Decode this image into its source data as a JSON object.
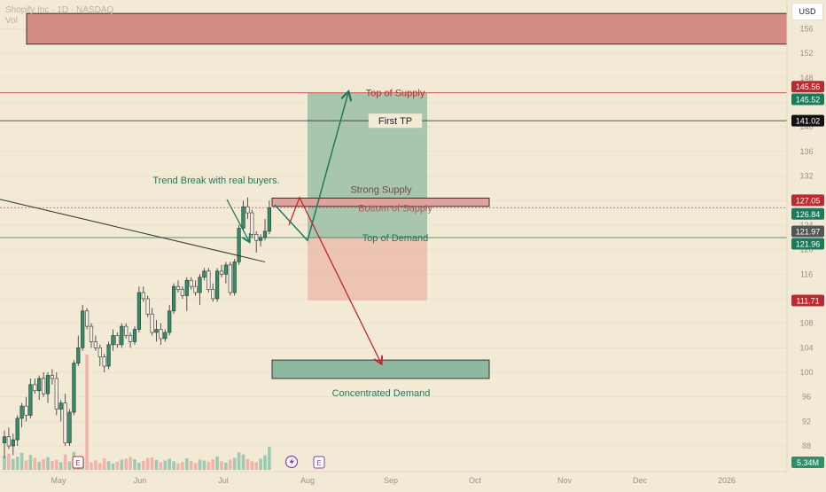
{
  "header": {
    "symbol": "Shopify Inc · 1D · NASDAQ",
    "volume_label": "Vol",
    "currency": "USD"
  },
  "colors": {
    "background": "#f3ead5",
    "up": "#2f8f6b",
    "down": "#ee8a84",
    "supply_zone": "#d48b85",
    "demand_zone": "#8fb8a0",
    "short_arrow": "#c0282f",
    "long_arrow": "#1b7a5c"
  },
  "chart_data": {
    "type": "candlestick",
    "title": "",
    "x_ticks": [
      "May",
      "Jun",
      "Jul",
      "Aug",
      "Sep",
      "Oct",
      "Nov",
      "Dec",
      "2026"
    ],
    "y_ticks": [
      88,
      92,
      96,
      100,
      104,
      108,
      112,
      116,
      120,
      124,
      128,
      132,
      136,
      140,
      144,
      148,
      152,
      156
    ],
    "ylim": [
      85,
      158.5
    ],
    "price_labels": [
      {
        "value": "145.56",
        "color": "#c0282f"
      },
      {
        "value": "145.52",
        "color": "#1b7a5c"
      },
      {
        "value": "141.02",
        "color": "#111111"
      },
      {
        "value": "127.05",
        "color": "#c0282f"
      },
      {
        "value": "126.84",
        "color": "#1b7a5c"
      },
      {
        "value": "121.97",
        "color": "#555555"
      },
      {
        "value": "121.96",
        "color": "#1b7a5c"
      },
      {
        "value": "111.71",
        "color": "#c0282f"
      }
    ],
    "volume_label": "5.34M",
    "candles": [
      [
        88.5,
        90.5,
        86,
        89.5
      ],
      [
        89.5,
        91,
        87.5,
        88
      ],
      [
        88,
        90,
        86.5,
        89
      ],
      [
        89,
        93,
        88,
        92.5
      ],
      [
        92.5,
        95,
        91,
        94.5
      ],
      [
        94.5,
        96,
        92,
        93
      ],
      [
        93,
        99,
        92.5,
        98
      ],
      [
        98,
        99,
        96.5,
        97
      ],
      [
        97,
        99.5,
        95.5,
        99
      ],
      [
        99,
        100,
        96,
        96.5
      ],
      [
        96.5,
        100,
        95,
        99.5
      ],
      [
        99.5,
        100.5,
        98,
        99
      ],
      [
        99,
        100,
        93,
        94
      ],
      [
        94,
        95.5,
        92,
        95
      ],
      [
        95,
        96.5,
        88,
        88.5
      ],
      [
        88.5,
        94,
        88,
        93.5
      ],
      [
        93.5,
        102,
        93,
        101.5
      ],
      [
        101.5,
        106,
        101,
        104
      ],
      [
        104,
        111,
        103.5,
        110
      ],
      [
        110,
        110.5,
        107,
        107.5
      ],
      [
        107.5,
        108,
        104,
        105
      ],
      [
        105,
        106,
        103.5,
        104
      ],
      [
        104,
        104.5,
        101,
        102.5
      ],
      [
        102.5,
        103,
        100,
        101
      ],
      [
        101,
        105,
        100.5,
        104.5
      ],
      [
        104.5,
        107,
        103.5,
        106
      ],
      [
        106,
        106.5,
        104,
        104.5
      ],
      [
        104.5,
        108,
        104,
        107.5
      ],
      [
        107.5,
        108,
        105.5,
        106
      ],
      [
        106,
        106.5,
        104,
        105
      ],
      [
        105,
        107.5,
        104.5,
        107
      ],
      [
        107,
        114,
        106.5,
        113
      ],
      [
        113,
        114,
        111.5,
        112
      ],
      [
        112,
        112.5,
        109,
        109.5
      ],
      [
        109.5,
        110.5,
        106,
        106.5
      ],
      [
        106.5,
        108.5,
        105,
        107
      ],
      [
        107,
        108,
        104.5,
        105.5
      ],
      [
        105.5,
        107,
        105,
        106.5
      ],
      [
        106.5,
        111,
        106,
        110
      ],
      [
        110,
        114.5,
        109.5,
        114
      ],
      [
        114,
        115,
        113,
        113.5
      ],
      [
        113.5,
        114,
        112,
        112.5
      ],
      [
        112.5,
        115.5,
        110,
        115
      ],
      [
        115,
        115.5,
        113.5,
        114
      ],
      [
        114,
        115,
        112.5,
        113
      ],
      [
        113,
        116,
        111,
        115.5
      ],
      [
        115.5,
        117,
        115,
        116.5
      ],
      [
        116.5,
        117,
        113,
        113.5
      ],
      [
        113.5,
        114.5,
        111.5,
        112
      ],
      [
        112,
        117,
        111.5,
        116.5
      ],
      [
        116.5,
        117.5,
        115.5,
        116
      ],
      [
        116,
        118,
        114.5,
        117.5
      ],
      [
        117.5,
        118,
        112.5,
        113
      ],
      [
        113,
        118.5,
        112.5,
        118
      ],
      [
        118,
        124,
        117.5,
        123.5
      ],
      [
        123.5,
        128,
        123,
        127
      ],
      [
        127,
        128.5,
        125,
        126
      ],
      [
        126,
        126.5,
        122,
        122.5
      ],
      [
        122.5,
        123,
        119.5,
        121.5
      ],
      [
        121.5,
        122.5,
        120.5,
        122
      ],
      [
        122,
        125,
        121.5,
        123
      ],
      [
        123,
        128,
        122.5,
        126.8
      ]
    ],
    "volumes": [
      3.2,
      3.8,
      2.6,
      3.1,
      4.0,
      2.2,
      3.5,
      2.8,
      1.9,
      2.5,
      3.0,
      2.1,
      2.4,
      1.8,
      3.6,
      2.0,
      4.2,
      2.9,
      2.3,
      27.0,
      1.8,
      2.2,
      1.6,
      2.7,
      2.0,
      1.5,
      1.9,
      2.4,
      2.6,
      3.0,
      2.5,
      1.7,
      2.1,
      2.8,
      2.9,
      2.3,
      1.8,
      2.2,
      2.6,
      2.0,
      1.5,
      1.9,
      2.7,
      2.1,
      1.6,
      2.4,
      2.2,
      1.9,
      2.5,
      3.1,
      2.0,
      1.7,
      2.4,
      2.8,
      4.1,
      3.6,
      2.5,
      2.0,
      1.8,
      2.6,
      3.4,
      5.34
    ],
    "volume_up": [
      true,
      false,
      true,
      true,
      true,
      false,
      true,
      false,
      true,
      false,
      true,
      false,
      false,
      true,
      false,
      true,
      true,
      true,
      true,
      false,
      false,
      false,
      false,
      false,
      true,
      true,
      false,
      true,
      false,
      false,
      true,
      true,
      false,
      false,
      false,
      true,
      false,
      true,
      true,
      true,
      false,
      false,
      true,
      false,
      false,
      true,
      true,
      false,
      false,
      true,
      false,
      true,
      false,
      true,
      true,
      true,
      false,
      false,
      false,
      true,
      true,
      true
    ],
    "trend_line": [
      [
        128.2,
        0
      ],
      [
        118,
        60
      ]
    ],
    "zones": [
      {
        "kind": "supply",
        "top": 158.5,
        "bottom": 153.5
      },
      {
        "kind": "supply",
        "label": "Strong Supply",
        "top": 128.4,
        "bottom": 127.05
      },
      {
        "kind": "demand",
        "label": "Concentrated Demand",
        "top": 102,
        "bottom": 99
      }
    ],
    "levels": [
      {
        "label": "Top of Supply",
        "value": 145.56,
        "color": "#c0282f"
      },
      {
        "label": "First TP",
        "value": 141.02,
        "color": "#222222"
      },
      {
        "label": "Bottom of Supply",
        "value": 126.84,
        "color": "#b05a5a"
      },
      {
        "label": "Top of Demand",
        "value": 121.96,
        "color": "#1b7a5c"
      }
    ],
    "position": {
      "entry": 121.96,
      "target": 145.52,
      "stop": 111.71
    },
    "annotations": [
      {
        "text": "Trend Break with real buyers.",
        "color": "#1b7a5c"
      }
    ]
  }
}
